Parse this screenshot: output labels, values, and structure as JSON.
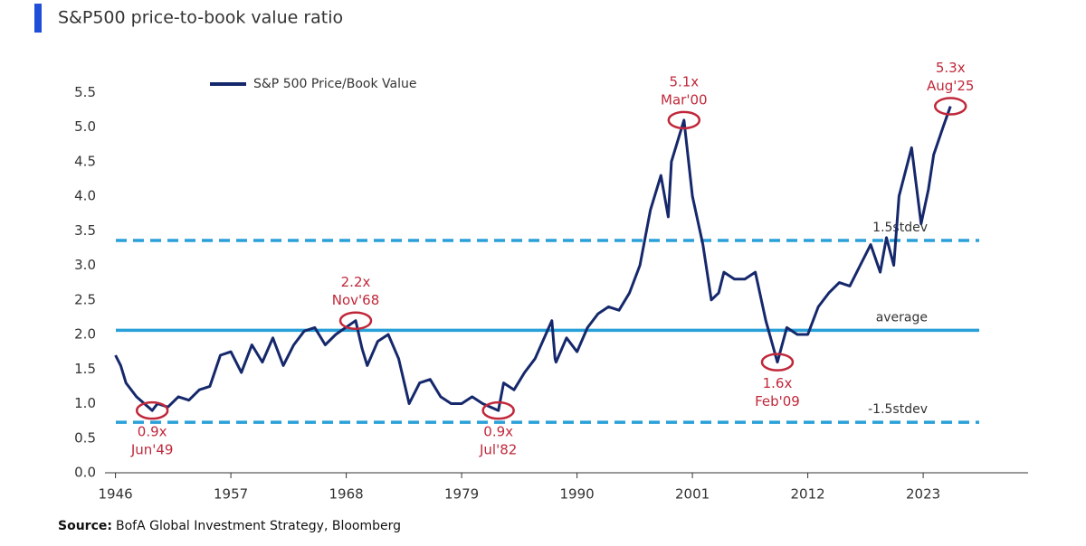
{
  "chart_data": {
    "type": "line",
    "title": "S&P500 price-to-book value ratio",
    "source_label": "Source:",
    "source": "BofA Global Investment Strategy, Bloomberg",
    "x": [
      1946,
      1946.5,
      1947,
      1948,
      1949.5,
      1950,
      1951,
      1952,
      1953,
      1954,
      1955,
      1956,
      1957,
      1958,
      1959,
      1960,
      1961,
      1962,
      1963,
      1964,
      1965,
      1966,
      1967,
      1968.9,
      1969.5,
      1970,
      1971,
      1972,
      1973,
      1974,
      1975,
      1976,
      1977,
      1978,
      1979,
      1980,
      1981,
      1982.5,
      1983,
      1984,
      1985,
      1986,
      1987.6,
      1987.9,
      1988,
      1989,
      1990,
      1991,
      1992,
      1993,
      1994,
      1995,
      1996,
      1997,
      1998,
      1998.7,
      1999,
      2000.2,
      2001,
      2002,
      2002.8,
      2003.5,
      2004,
      2005,
      2006,
      2007,
      2008,
      2009.1,
      2010,
      2011,
      2012,
      2013,
      2014,
      2015,
      2016,
      2017,
      2018,
      2018.9,
      2019.5,
      2020.2,
      2020.7,
      2021.9,
      2022.8,
      2023.5,
      2024,
      2024.9,
      2025.6
    ],
    "series": [
      {
        "name": "S&P 500 Price/Book Value",
        "color": "#15286b",
        "values": [
          1.7,
          1.55,
          1.3,
          1.1,
          0.9,
          1.0,
          0.95,
          1.1,
          1.05,
          1.2,
          1.25,
          1.7,
          1.75,
          1.45,
          1.85,
          1.6,
          1.95,
          1.55,
          1.85,
          2.05,
          2.1,
          1.85,
          2.0,
          2.2,
          1.8,
          1.55,
          1.9,
          2.0,
          1.65,
          1.0,
          1.3,
          1.35,
          1.1,
          1.0,
          1.0,
          1.1,
          1.0,
          0.9,
          1.3,
          1.2,
          1.45,
          1.65,
          2.2,
          1.65,
          1.6,
          1.95,
          1.75,
          2.1,
          2.3,
          2.4,
          2.35,
          2.6,
          3.0,
          3.8,
          4.3,
          3.7,
          4.5,
          5.1,
          4.0,
          3.3,
          2.5,
          2.6,
          2.9,
          2.8,
          2.8,
          2.9,
          2.2,
          1.6,
          2.1,
          2.0,
          2.0,
          2.4,
          2.6,
          2.75,
          2.7,
          3.0,
          3.3,
          2.9,
          3.4,
          3.0,
          4.0,
          4.7,
          3.6,
          4.1,
          4.6,
          5.0,
          5.3
        ]
      }
    ],
    "xlim": [
      1945,
      2033
    ],
    "xticks": [
      1946,
      1957,
      1968,
      1979,
      1990,
      2001,
      2012,
      2023
    ],
    "ylim": [
      0,
      6
    ],
    "yticks": [
      {
        "value": 0,
        "label": "0.0"
      },
      0.5,
      {
        "value": 1,
        "label": "1.0"
      },
      1.5,
      {
        "value": 2,
        "label": "2.0"
      },
      2.5,
      {
        "value": 3,
        "label": "3.0"
      },
      3.5,
      {
        "value": 4,
        "label": "4.0"
      },
      4.5,
      {
        "value": 5,
        "label": "5.0"
      },
      5.5
    ],
    "reference_lines": [
      {
        "label": "1.5stdev",
        "value": 3.36,
        "style": "dashed",
        "color": "#2aa0d8"
      },
      {
        "label": "average",
        "value": 2.06,
        "style": "solid",
        "color": "#2aa0d8"
      },
      {
        "label": "-1.5stdev",
        "value": 0.73,
        "style": "dashed",
        "color": "#2aa0d8"
      }
    ],
    "annotations": [
      {
        "label": "0.9x",
        "date": "Jun'49",
        "x": 1949.5,
        "y": 0.9,
        "position": "below"
      },
      {
        "label": "2.2x",
        "date": "Nov'68",
        "x": 1968.9,
        "y": 2.2,
        "position": "above"
      },
      {
        "label": "0.9x",
        "date": "Jul'82",
        "x": 1982.5,
        "y": 0.9,
        "position": "below"
      },
      {
        "label": "5.1x",
        "date": "Mar'00",
        "x": 2000.2,
        "y": 5.1,
        "position": "above"
      },
      {
        "label": "1.6x",
        "date": "Feb'09",
        "x": 2009.1,
        "y": 1.6,
        "position": "below"
      },
      {
        "label": "5.3x",
        "date": "Aug'25",
        "x": 2025.6,
        "y": 5.3,
        "position": "above"
      }
    ],
    "annotation_color": "#c0283a"
  }
}
